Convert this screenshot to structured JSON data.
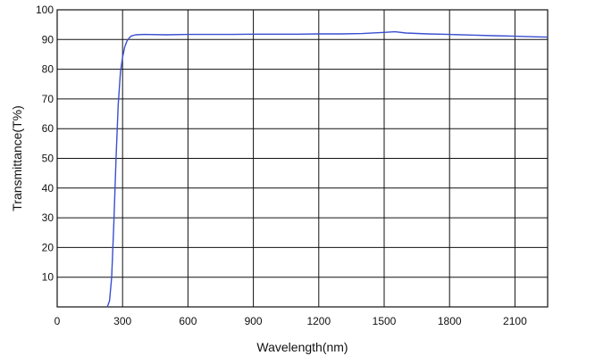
{
  "chart_data": {
    "type": "line",
    "title": "",
    "xlabel": "Wavelength(nm)",
    "ylabel": "Transmittance(T%)",
    "xlim": [
      0,
      2250
    ],
    "ylim": [
      0,
      100
    ],
    "x_ticks": [
      0,
      300,
      600,
      900,
      1200,
      1500,
      1800,
      2100
    ],
    "y_ticks": [
      10,
      20,
      30,
      40,
      50,
      60,
      70,
      80,
      90,
      100
    ],
    "grid": true,
    "legend": "none",
    "series": [
      {
        "color": "#3a4fcf",
        "x": [
          230,
          240,
          250,
          260,
          270,
          280,
          290,
          300,
          310,
          320,
          330,
          340,
          360,
          400,
          500,
          600,
          700,
          800,
          900,
          1000,
          1100,
          1200,
          1300,
          1400,
          1500,
          1550,
          1600,
          1700,
          1800,
          1900,
          2000,
          2100,
          2200,
          2250
        ],
        "y": [
          0,
          2,
          10,
          28,
          50,
          68,
          79,
          84,
          87.5,
          89.5,
          90.5,
          91.2,
          91.6,
          91.7,
          91.6,
          91.7,
          91.7,
          91.7,
          91.8,
          91.8,
          91.8,
          91.9,
          91.9,
          92.0,
          92.4,
          92.6,
          92.2,
          91.9,
          91.7,
          91.5,
          91.3,
          91.1,
          90.9,
          90.8
        ]
      }
    ]
  }
}
